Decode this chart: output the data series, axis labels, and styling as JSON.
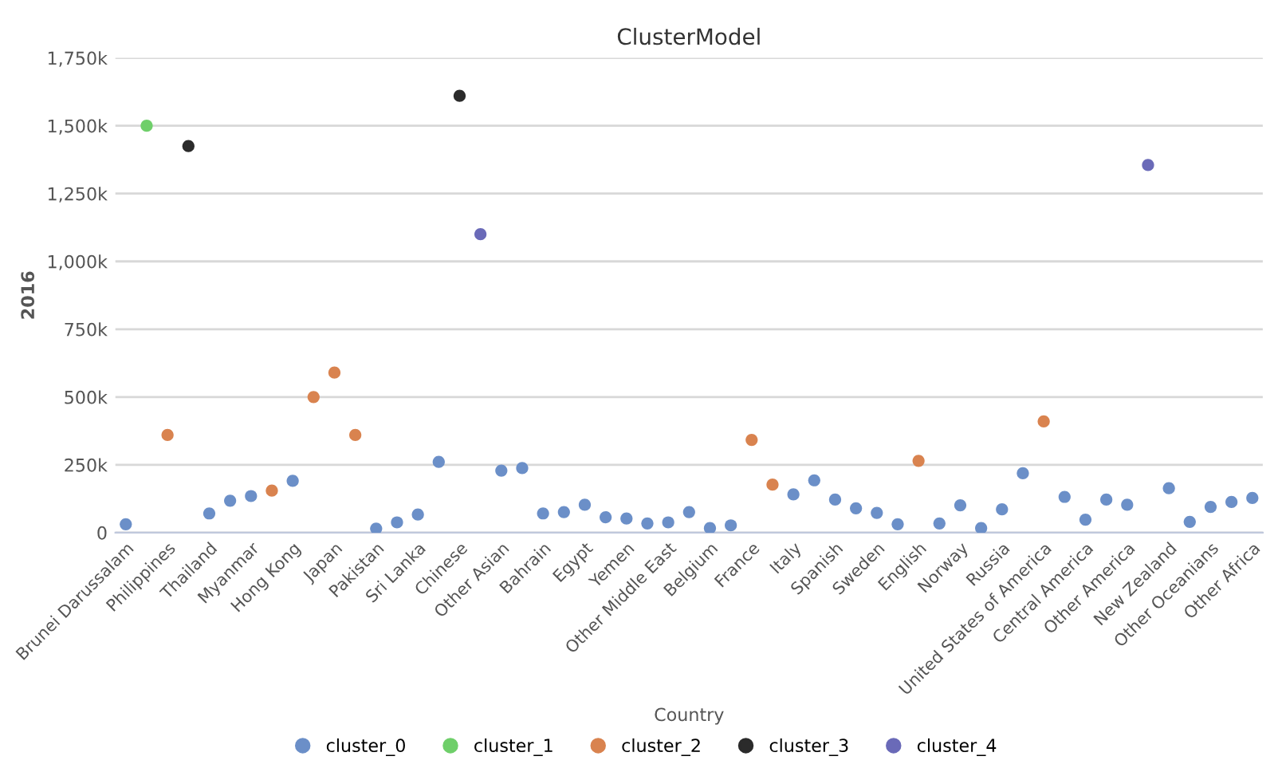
{
  "chart_data": {
    "type": "scatter",
    "title": "ClusterModel",
    "xlabel": "Country",
    "ylabel": "2016",
    "categories": [
      "Brunei Darussalam",
      null,
      "Philippines",
      null,
      "Thailand",
      null,
      "Myanmar",
      null,
      "Hong Kong",
      null,
      "Japan",
      null,
      "Pakistan",
      null,
      "Sri Lanka",
      null,
      "Chinese",
      null,
      "Other Asian",
      null,
      "Bahrain",
      null,
      "Egypt",
      null,
      "Yemen",
      null,
      "Other Middle East",
      null,
      "Belgium",
      null,
      "France",
      null,
      "Italy",
      null,
      "Spanish",
      null,
      "Sweden",
      null,
      "English",
      null,
      "Norway",
      null,
      "Russia",
      null,
      "United States of America",
      null,
      "Central America",
      null,
      "Other America",
      null,
      "New Zealand",
      null,
      "Other Oceanians",
      null,
      "Other Africa"
    ],
    "series": [
      {
        "name": "cluster_0",
        "color": "#6b8fc8",
        "values": [
          31000,
          null,
          null,
          null,
          71000,
          118000,
          135000,
          null,
          191000,
          null,
          null,
          null,
          15000,
          38000,
          67000,
          261000,
          null,
          null,
          229000,
          238000,
          71000,
          76000,
          103000,
          57000,
          52000,
          34000,
          38000,
          76000,
          17000,
          27000,
          null,
          null,
          141000,
          193000,
          122000,
          90000,
          73000,
          31000,
          null,
          34000,
          101000,
          17000,
          86000,
          219000,
          null,
          132000,
          48000,
          122000,
          103000,
          null,
          164000,
          40000,
          95000,
          113000,
          128000
        ]
      },
      {
        "name": "cluster_1",
        "color": "#6fcf6a",
        "values": [
          null,
          1500000,
          null,
          null,
          null,
          null,
          null,
          null,
          null,
          null,
          null,
          null,
          null,
          null,
          null,
          null,
          null,
          null,
          null,
          null,
          null,
          null,
          null,
          null,
          null,
          null,
          null,
          null,
          null,
          null,
          null,
          null,
          null,
          null,
          null,
          null,
          null,
          null,
          null,
          null,
          null,
          null,
          null,
          null,
          null,
          null,
          null,
          null,
          null,
          null,
          null,
          null,
          null,
          null,
          null
        ]
      },
      {
        "name": "cluster_2",
        "color": "#d9834f",
        "values": [
          null,
          null,
          360000,
          null,
          null,
          null,
          null,
          155000,
          null,
          500000,
          590000,
          360000,
          null,
          null,
          null,
          null,
          null,
          null,
          null,
          null,
          null,
          null,
          null,
          null,
          null,
          null,
          null,
          null,
          null,
          null,
          342000,
          177000,
          null,
          null,
          null,
          null,
          null,
          null,
          265000,
          null,
          null,
          null,
          null,
          null,
          410000,
          null,
          null,
          null,
          null,
          null,
          null,
          null,
          null,
          null,
          null
        ]
      },
      {
        "name": "cluster_3",
        "color": "#2b2b2b",
        "values": [
          null,
          null,
          null,
          1425000,
          null,
          null,
          null,
          null,
          null,
          null,
          null,
          null,
          null,
          null,
          null,
          null,
          1610000,
          null,
          null,
          null,
          null,
          null,
          null,
          null,
          null,
          null,
          null,
          null,
          null,
          null,
          null,
          null,
          null,
          null,
          null,
          null,
          null,
          null,
          null,
          null,
          null,
          null,
          null,
          null,
          null,
          null,
          null,
          null,
          null,
          null,
          null,
          null,
          null,
          null,
          null
        ]
      },
      {
        "name": "cluster_4",
        "color": "#6a6ab8",
        "values": [
          null,
          null,
          null,
          null,
          null,
          null,
          null,
          null,
          null,
          null,
          null,
          null,
          null,
          null,
          null,
          null,
          null,
          1100000,
          null,
          null,
          null,
          null,
          null,
          null,
          null,
          null,
          null,
          null,
          null,
          null,
          null,
          null,
          null,
          null,
          null,
          null,
          null,
          null,
          null,
          null,
          null,
          null,
          null,
          null,
          null,
          null,
          null,
          null,
          null,
          1355000,
          null,
          null,
          null,
          null,
          null
        ]
      }
    ],
    "ylim": [
      0,
      1750000
    ],
    "yticks": [
      {
        "value": 0,
        "label": "0"
      },
      {
        "value": 250000,
        "label": "250k"
      },
      {
        "value": 500000,
        "label": "500k"
      },
      {
        "value": 750000,
        "label": "750k"
      },
      {
        "value": 1000000,
        "label": "1,000k"
      },
      {
        "value": 1250000,
        "label": "1,250k"
      },
      {
        "value": 1500000,
        "label": "1,500k"
      },
      {
        "value": 1750000,
        "label": "1,750k"
      }
    ],
    "grid": "y",
    "legend": "bottom",
    "marker": "circle"
  }
}
